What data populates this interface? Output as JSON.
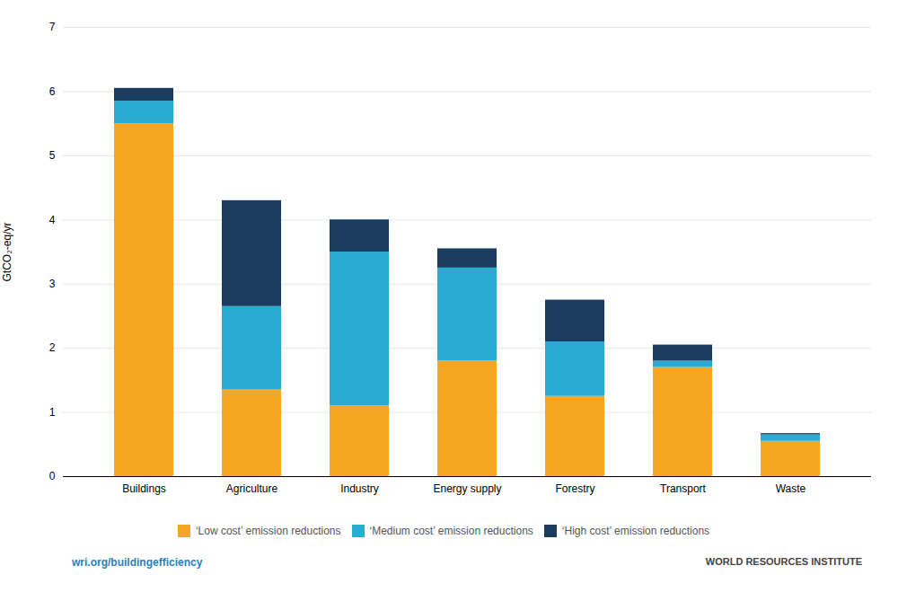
{
  "chart_data": {
    "type": "bar",
    "stacked": true,
    "categories": [
      "Buildings",
      "Agriculture",
      "Industry",
      "Energy supply",
      "Forestry",
      "Transport",
      "Waste"
    ],
    "series": [
      {
        "name": "‘Low cost’ emission reductions",
        "color": "#F5A623",
        "values": [
          5.5,
          1.35,
          1.1,
          1.8,
          1.25,
          1.7,
          0.55
        ]
      },
      {
        "name": "‘Medium cost’ emission reductions",
        "color": "#29ABD4",
        "values": [
          0.35,
          1.3,
          2.4,
          1.45,
          0.85,
          0.1,
          0.1
        ]
      },
      {
        "name": "‘High cost’ emission reductions",
        "color": "#1A3C5E",
        "values": [
          0.2,
          1.65,
          0.5,
          0.3,
          0.65,
          0.25,
          0.02
        ]
      }
    ],
    "ylabel": "GtCO₂-eq/yr",
    "ylim": [
      0,
      7
    ],
    "yticks": [
      0,
      1,
      2,
      3,
      4,
      5,
      6,
      7
    ],
    "grid": true,
    "legend": "bottom",
    "annotations": [
      "wri.org/buildingefficiency",
      "WORLD RESOURCES INSTITUTE"
    ]
  }
}
